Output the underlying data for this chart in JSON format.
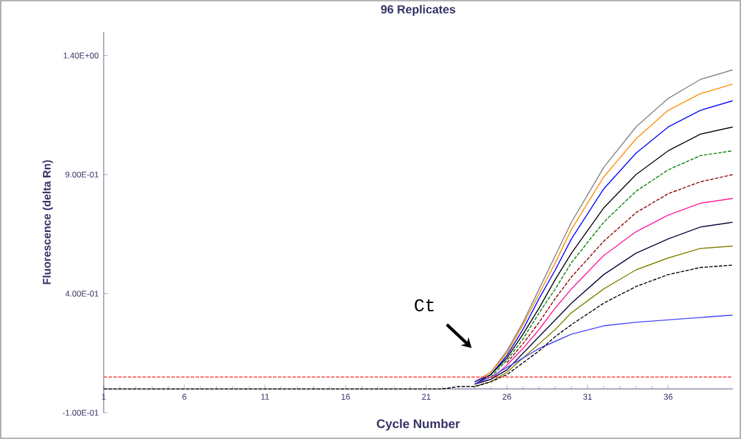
{
  "chart_data": {
    "type": "line",
    "title": "96 Replicates",
    "xlabel": "Cycle Number",
    "ylabel": "Fluorescence (delta Rn)",
    "xlim": [
      1,
      40
    ],
    "ylim": [
      -0.1,
      1.5
    ],
    "xticks": [
      1,
      6,
      11,
      16,
      21,
      26,
      31,
      36
    ],
    "yticks": [
      {
        "value": -0.1,
        "label": "-1.00E-01"
      },
      {
        "value": 0.4,
        "label": "4.00E-01"
      },
      {
        "value": 0.9,
        "label": "9.00E-01"
      },
      {
        "value": 1.4,
        "label": "1.40E+00"
      }
    ],
    "marker": "none",
    "x": [
      1,
      20,
      22,
      23,
      24,
      25,
      26,
      27,
      28,
      29,
      30,
      32,
      34,
      36,
      38,
      40
    ],
    "series": [
      {
        "color": "#808080",
        "line_style": "solid",
        "values": [
          null,
          null,
          null,
          null,
          0.03,
          0.07,
          0.16,
          0.28,
          0.42,
          0.56,
          0.7,
          0.93,
          1.1,
          1.22,
          1.3,
          1.34
        ]
      },
      {
        "color": "#ff8c00",
        "line_style": "solid",
        "values": [
          null,
          null,
          null,
          null,
          0.03,
          0.07,
          0.15,
          0.27,
          0.4,
          0.53,
          0.67,
          0.89,
          1.05,
          1.17,
          1.24,
          1.28
        ]
      },
      {
        "color": "#0000ff",
        "line_style": "solid",
        "values": [
          null,
          null,
          null,
          null,
          0.03,
          0.06,
          0.14,
          0.25,
          0.38,
          0.5,
          0.63,
          0.84,
          0.99,
          1.1,
          1.17,
          1.21
        ]
      },
      {
        "color": "#000000",
        "line_style": "solid",
        "values": [
          null,
          null,
          null,
          null,
          0.02,
          0.06,
          0.13,
          0.23,
          0.34,
          0.46,
          0.57,
          0.76,
          0.9,
          1.0,
          1.07,
          1.1
        ]
      },
      {
        "color": "#008000",
        "line_style": "dashed",
        "values": [
          null,
          null,
          null,
          null,
          null,
          0.05,
          0.12,
          0.21,
          0.32,
          0.42,
          0.53,
          0.7,
          0.83,
          0.92,
          0.98,
          1.0
        ]
      },
      {
        "color": "#8b0000",
        "line_style": "dashed",
        "values": [
          null,
          null,
          null,
          null,
          null,
          null,
          0.11,
          0.19,
          0.28,
          0.38,
          0.47,
          0.62,
          0.74,
          0.82,
          0.87,
          0.9
        ]
      },
      {
        "color": "#ff1493",
        "line_style": "solid",
        "values": [
          null,
          null,
          null,
          null,
          0.02,
          0.04,
          0.1,
          0.17,
          0.25,
          0.34,
          0.42,
          0.56,
          0.66,
          0.73,
          0.78,
          0.8
        ]
      },
      {
        "color": "#000033",
        "line_style": "solid",
        "values": [
          null,
          null,
          null,
          null,
          0.02,
          0.04,
          0.08,
          0.15,
          0.22,
          0.29,
          0.36,
          0.48,
          0.57,
          0.63,
          0.68,
          0.7
        ]
      },
      {
        "color": "#808000",
        "line_style": "solid",
        "values": [
          null,
          null,
          null,
          null,
          0.01,
          0.03,
          0.07,
          0.13,
          0.19,
          0.25,
          0.32,
          0.42,
          0.5,
          0.55,
          0.59,
          0.6
        ]
      },
      {
        "color": "#4040ff",
        "line_style": "solid",
        "values": [
          null,
          null,
          null,
          null,
          0.02,
          0.05,
          0.09,
          0.13,
          0.17,
          0.2,
          0.23,
          0.265,
          0.28,
          0.29,
          0.3,
          0.31
        ]
      },
      {
        "color": "#000000",
        "line_style": "dashed",
        "values": [
          0,
          0,
          0,
          0.01,
          0.01,
          0.03,
          0.06,
          0.11,
          0.16,
          0.22,
          0.27,
          0.36,
          0.43,
          0.48,
          0.51,
          0.52
        ]
      }
    ],
    "ref_lines": [
      {
        "axis": "y",
        "value": 0.05,
        "color": "#ff4040",
        "line_style": "dashed"
      }
    ],
    "annotations": [
      "Ct"
    ]
  }
}
